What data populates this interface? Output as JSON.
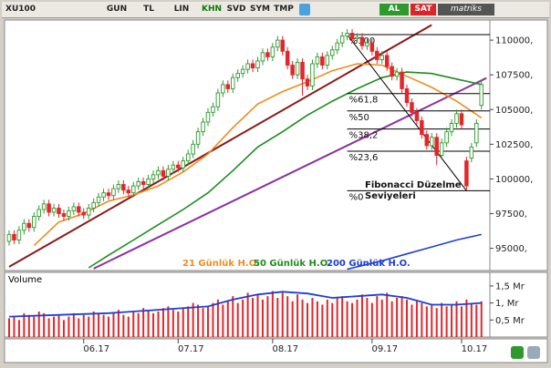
{
  "toolbar": {
    "symbol": "XU100",
    "buttons": [
      "GUN",
      "TL",
      "LIN",
      "KHN",
      "SVD",
      "SYM",
      "TMP"
    ],
    "buy": "AL",
    "sell": "SAT",
    "brand": "matriks"
  },
  "chart_data": [
    {
      "type": "candlestick",
      "open": [
        95500,
        96000,
        95600,
        96300,
        96800,
        96500,
        97300,
        97800,
        98200,
        97600,
        97900,
        97500,
        97300,
        97700,
        98000,
        97600,
        97400,
        97900,
        98300,
        98700,
        99000,
        98800,
        99300,
        99600,
        99200,
        99000,
        99500,
        99800,
        99600,
        100000,
        100300,
        100600,
        100200,
        100700,
        101000,
        100800,
        101300,
        101800,
        102500,
        103400,
        104100,
        104800,
        105200,
        106200,
        106800,
        106500,
        107300,
        107600,
        107900,
        108300,
        108000,
        108500,
        109100,
        108800,
        109500,
        110000,
        109200,
        108200,
        107500,
        108400,
        107200,
        106700,
        108300,
        108800,
        108200,
        108900,
        109300,
        109800,
        110300,
        110500,
        110100,
        110200,
        109600,
        109800,
        109200,
        108600,
        108900,
        108100,
        107400,
        107700,
        106500,
        105500,
        104800,
        104200,
        103200,
        102400,
        103000,
        101700,
        102600,
        103400,
        104000,
        104700,
        101300,
        101500,
        102600,
        105300
      ],
      "high": [
        96300,
        96300,
        96600,
        97100,
        97100,
        97600,
        98100,
        98500,
        98500,
        98200,
        98200,
        97800,
        98000,
        98300,
        98300,
        97900,
        98200,
        98600,
        99000,
        99300,
        99300,
        99600,
        99900,
        99900,
        99500,
        99800,
        100100,
        100100,
        100300,
        100600,
        100900,
        100900,
        101000,
        101300,
        101300,
        101600,
        102100,
        102800,
        103700,
        104400,
        105100,
        105500,
        106500,
        107100,
        107100,
        107600,
        107900,
        108200,
        108600,
        108600,
        108800,
        109400,
        109400,
        109800,
        110300,
        110300,
        109500,
        108500,
        108700,
        108700,
        107500,
        108600,
        109100,
        109100,
        109200,
        109600,
        110100,
        110600,
        110800,
        110800,
        110500,
        110500,
        110100,
        110100,
        109500,
        109200,
        109200,
        108400,
        108000,
        108000,
        106800,
        105800,
        105100,
        104500,
        103500,
        103300,
        103300,
        102900,
        103700,
        104300,
        105000,
        105000,
        101600,
        102600,
        104300,
        107100
      ],
      "low": [
        95200,
        95300,
        95300,
        96000,
        96200,
        96200,
        97000,
        97500,
        97300,
        97300,
        97200,
        97000,
        97000,
        97400,
        97300,
        97100,
        97100,
        97600,
        98000,
        98400,
        98500,
        98500,
        99000,
        98900,
        98700,
        98700,
        99200,
        99300,
        99300,
        99700,
        100000,
        99900,
        99900,
        100400,
        100500,
        100500,
        101000,
        101500,
        102200,
        103100,
        103800,
        104500,
        104900,
        105900,
        106200,
        106200,
        107000,
        107300,
        107600,
        107700,
        107700,
        108200,
        108500,
        108500,
        109200,
        108900,
        107900,
        107200,
        107200,
        106000,
        106400,
        106400,
        108000,
        107900,
        107900,
        108600,
        109000,
        109500,
        110000,
        109800,
        109800,
        109300,
        109300,
        108900,
        108300,
        108300,
        107800,
        107100,
        107100,
        106200,
        105200,
        104500,
        103900,
        102900,
        102100,
        102100,
        101000,
        101400,
        102300,
        103100,
        103700,
        103600,
        99200,
        101200,
        102300,
        105000
      ],
      "close": [
        96000,
        95600,
        96300,
        96800,
        96500,
        97300,
        97800,
        98200,
        97600,
        97900,
        97500,
        97300,
        97700,
        98000,
        97600,
        97400,
        97900,
        98300,
        98700,
        99000,
        98800,
        99300,
        99600,
        99200,
        99000,
        99500,
        99800,
        99600,
        100000,
        100300,
        100600,
        100200,
        100700,
        101000,
        100800,
        101300,
        101800,
        102500,
        103400,
        104100,
        104800,
        105200,
        106200,
        106800,
        106500,
        107300,
        107600,
        107900,
        108300,
        108000,
        108500,
        109100,
        108800,
        109500,
        110000,
        109200,
        108200,
        107500,
        108400,
        107200,
        106700,
        108300,
        108800,
        108200,
        108900,
        109300,
        109800,
        110300,
        110500,
        110100,
        110200,
        109600,
        109800,
        109200,
        108600,
        108900,
        108100,
        107400,
        107700,
        106500,
        105500,
        104800,
        104200,
        103200,
        102400,
        103000,
        101700,
        102600,
        103400,
        104000,
        104700,
        103900,
        99500,
        102300,
        104000,
        106800
      ],
      "up_color": "#2e9a2e",
      "down_color": "#e3262b",
      "series": [
        {
          "name": "21 Günlük H.O.",
          "color": "#f08c1e",
          "x": [
            5,
            10,
            15,
            20,
            25,
            30,
            35,
            40,
            45,
            50,
            55,
            60,
            65,
            70,
            75,
            80,
            85,
            90,
            95
          ],
          "values": [
            95200,
            96900,
            97500,
            98400,
            98850,
            99500,
            100500,
            101800,
            103700,
            105400,
            106300,
            107000,
            107800,
            108300,
            108200,
            107400,
            106600,
            105600,
            104400
          ]
        },
        {
          "name": "50 Günlük H.O.",
          "color": "#1e8c1e",
          "x": [
            16,
            20,
            25,
            30,
            35,
            40,
            45,
            50,
            55,
            60,
            65,
            70,
            75,
            80,
            85,
            90,
            95
          ],
          "values": [
            93600,
            94500,
            95600,
            96700,
            97800,
            99000,
            100600,
            102300,
            103400,
            104600,
            105600,
            106500,
            107300,
            107700,
            107600,
            107200,
            106800
          ]
        },
        {
          "name": "200 Günlük H.O.",
          "color": "#1c3fd4",
          "x": [
            68,
            75,
            80,
            85,
            90,
            95
          ],
          "values": [
            93500,
            94100,
            94600,
            95100,
            95600,
            96000
          ]
        }
      ],
      "trend_lines": [
        {
          "color": "#8b1a1a",
          "points": [
            [
              0,
              93670
            ],
            [
              85,
              111100
            ]
          ]
        },
        {
          "color": "#8b2f9e",
          "points": [
            [
              17,
              93540
            ],
            [
              96,
              107270
            ]
          ]
        }
      ],
      "fibonacci": {
        "start": 68,
        "end": 92,
        "levels": [
          {
            "label": "%100",
            "value": 110400
          },
          {
            "label": "%61,8",
            "value": 106150
          },
          {
            "label": "%50",
            "value": 104900
          },
          {
            "label": "%38,2",
            "value": 103600
          },
          {
            "label": "%23,6",
            "value": 102000
          },
          {
            "label": "%0",
            "value": 99150
          }
        ],
        "note": [
          "Fibonacci Düzelme",
          "Seviyeleri"
        ]
      },
      "ylim": [
        93400,
        111450
      ],
      "yticks": [
        {
          "value": 95000,
          "label": "95000,"
        },
        {
          "value": 97500,
          "label": "97500,"
        },
        {
          "value": 100000,
          "label": "100000,"
        },
        {
          "value": 102500,
          "label": "102500,"
        },
        {
          "value": 105000,
          "label": "105000,"
        },
        {
          "value": 107500,
          "label": "107500,"
        },
        {
          "value": 110000,
          "label": "110000,"
        }
      ],
      "xticks": [
        {
          "value": 15,
          "label": "06.17"
        },
        {
          "value": 34,
          "label": "07.17"
        },
        {
          "value": 53,
          "label": "08.17"
        },
        {
          "value": 73,
          "label": "09.17"
        },
        {
          "value": 91,
          "label": "10.17"
        }
      ]
    },
    {
      "type": "bar",
      "title": "Volume",
      "color": "#e3262b",
      "values": [
        0.55,
        0.6,
        0.5,
        0.7,
        0.65,
        0.6,
        0.75,
        0.7,
        0.55,
        0.6,
        0.65,
        0.5,
        0.6,
        0.7,
        0.55,
        0.65,
        0.6,
        0.75,
        0.7,
        0.65,
        0.6,
        0.7,
        0.8,
        0.65,
        0.6,
        0.75,
        0.7,
        0.85,
        0.8,
        0.7,
        0.75,
        0.85,
        0.9,
        0.8,
        0.75,
        0.85,
        0.9,
        1.0,
        0.95,
        0.85,
        0.9,
        1.0,
        1.1,
        0.95,
        1.05,
        1.2,
        1.0,
        1.1,
        1.3,
        1.15,
        1.25,
        1.1,
        1.2,
        1.35,
        1.15,
        1.3,
        1.2,
        1.05,
        1.25,
        1.1,
        1.0,
        1.15,
        1.05,
        0.95,
        1.1,
        1.0,
        1.15,
        1.2,
        1.05,
        1.0,
        1.1,
        1.25,
        1.15,
        1.0,
        1.2,
        1.1,
        1.3,
        1.05,
        1.15,
        1.2,
        1.1,
        0.95,
        1.05,
        1.0,
        0.9,
        0.95,
        0.85,
        1.0,
        0.9,
        0.95,
        1.05,
        0.9,
        1.1,
        1.0,
        0.95,
        1.05
      ],
      "line": {
        "color": "#1c3fd4",
        "x": [
          0,
          10,
          20,
          30,
          40,
          45,
          50,
          55,
          60,
          65,
          70,
          75,
          80,
          85,
          90,
          95
        ],
        "values": [
          0.6,
          0.65,
          0.7,
          0.8,
          0.9,
          1.1,
          1.25,
          1.33,
          1.28,
          1.15,
          1.2,
          1.25,
          1.15,
          0.95,
          0.95,
          1.0
        ]
      },
      "ylim": [
        0,
        1.9
      ],
      "yticks": [
        {
          "value": 0.5,
          "label": "0,5 Mr"
        },
        {
          "value": 1,
          "label": "1, Mr"
        },
        {
          "value": 1.5,
          "label": "1,5 Mr"
        }
      ]
    }
  ]
}
